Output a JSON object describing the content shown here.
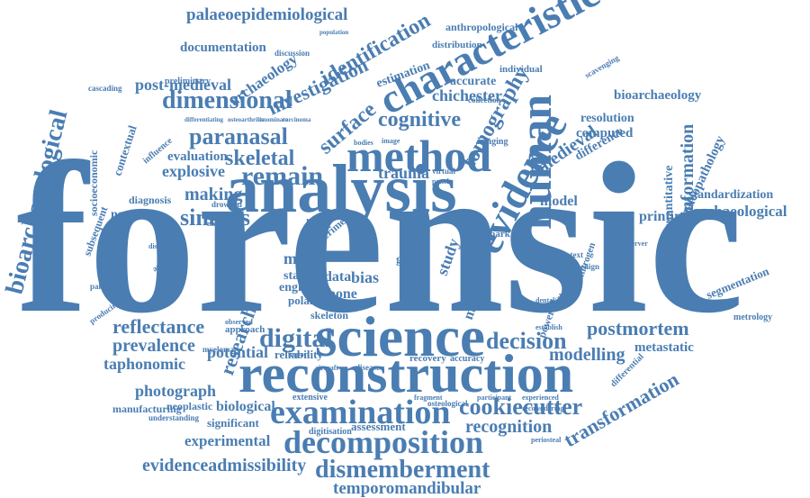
{
  "words": [
    "forensic",
    "analysis",
    "reconstruction",
    "science",
    "human",
    "evidence",
    "characteristic",
    "method",
    "examination",
    "decomposition",
    "dismemberment",
    "temporomandibular",
    "evidenceadmissibility",
    "experimental",
    "digital",
    "decision",
    "postmortem",
    "modelling",
    "metastatic",
    "cookiecutter",
    "recognition",
    "transformation",
    "reflectance",
    "prevalence",
    "taphonomic",
    "potential",
    "reliability",
    "photograph",
    "neoplastic",
    "biological",
    "manufacturing",
    "understanding",
    "significant",
    "assessment",
    "digitisation",
    "research",
    "bioarchaeological",
    "socioeconomic",
    "contextual",
    "palaeoepidemiological",
    "documentation",
    "post-medieval",
    "archaeology",
    "investigation",
    "identification",
    "surface",
    "dimensional",
    "paranasal",
    "skeletal",
    "remain",
    "explosive",
    "evaluation",
    "making",
    "sinuses",
    "diagnosis",
    "neoplasm",
    "subsequent",
    "preliminary",
    "discussion",
    "population",
    "anthropological",
    "distribution",
    "estimation",
    "accurate",
    "individual",
    "chichester",
    "cognitive",
    "tomography",
    "computed",
    "resolution",
    "bioarchaeology",
    "medieval",
    "difference",
    "information",
    "quantitative",
    "paleopathology",
    "standardization",
    "archaeological",
    "printing",
    "model",
    "trauma",
    "study",
    "multiple",
    "segmentation",
    "metrology",
    "mark",
    "status",
    "england",
    "poland",
    "bone",
    "bias",
    "data",
    "skeleton",
    "gait",
    "case",
    "result",
    "shark",
    "observer",
    "nitrogen",
    "benign",
    "context",
    "powered",
    "interval",
    "dental",
    "establish",
    "lesion",
    "collection",
    "imaging",
    "bodies",
    "image",
    "virtual",
    "panel",
    "recovery",
    "accuracy",
    "extensive",
    "fragment",
    "osteological",
    "participant",
    "paleodiet",
    "producing",
    "cascading",
    "myeloma",
    "approach",
    "observed",
    "differential",
    "scavenging",
    "influence",
    "accident",
    "distance",
    "crime",
    "drowned",
    "mortem",
    "modeling",
    "experienced",
    "reconsidering",
    "periosteal",
    "aircraft",
    "disease",
    "impact",
    "differentiating",
    "osteoarthritis",
    "innominate",
    "carcinoma"
  ]
}
